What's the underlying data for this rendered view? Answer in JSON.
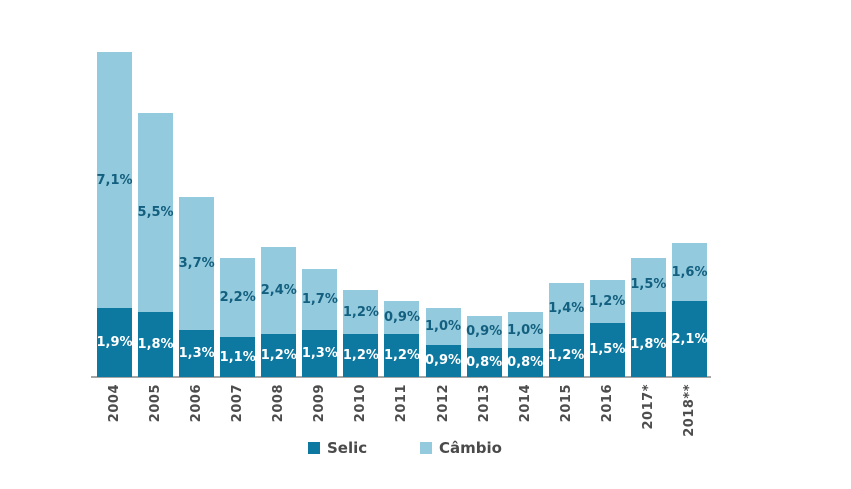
{
  "chart_data": {
    "type": "bar",
    "stacked": true,
    "title": "",
    "xlabel": "",
    "ylabel": "",
    "grid": false,
    "y_axis_visible": false,
    "value_suffix": "%",
    "decimal_separator": ",",
    "legend_position": "bottom",
    "x_labels_rotation_deg": -90,
    "categories": [
      "2004",
      "2005",
      "2006",
      "2007",
      "2008",
      "2009",
      "2010",
      "2011",
      "2012",
      "2013",
      "2014",
      "2015",
      "2016",
      "2017*",
      "2018**"
    ],
    "series": [
      {
        "name": "Selic",
        "color": "#0d79a0",
        "label_color": "#ffffff",
        "values": [
          1.9,
          1.8,
          1.3,
          1.1,
          1.2,
          1.3,
          1.2,
          1.2,
          0.9,
          0.8,
          0.8,
          1.2,
          1.5,
          1.8,
          2.1
        ],
        "labels": [
          "1,9%",
          "1,8%",
          "1,3%",
          "1,1%",
          "1,2%",
          "1,3%",
          "1,2%",
          "1,2%",
          "0,9%",
          "0,8%",
          "0,8%",
          "1,2%",
          "1,5%",
          "1,8%",
          "2,1%"
        ]
      },
      {
        "name": "Câmbio",
        "color": "#93cadd",
        "label_color": "#135f7f",
        "values": [
          7.1,
          5.5,
          3.7,
          2.2,
          2.4,
          1.7,
          1.2,
          0.9,
          1.0,
          0.9,
          1.0,
          1.4,
          1.2,
          1.5,
          1.6
        ],
        "labels": [
          "7,1%",
          "5,5%",
          "3,7%",
          "2,2%",
          "2,4%",
          "1,7%",
          "1,2%",
          "0,9%",
          "1,0%",
          "0,9%",
          "1,0%",
          "1,4%",
          "1,2%",
          "1,5%",
          "1,6%"
        ]
      }
    ],
    "axis_colors": {
      "baseline": "#a6a6a6",
      "tick_label": "#4d4d4d"
    }
  }
}
